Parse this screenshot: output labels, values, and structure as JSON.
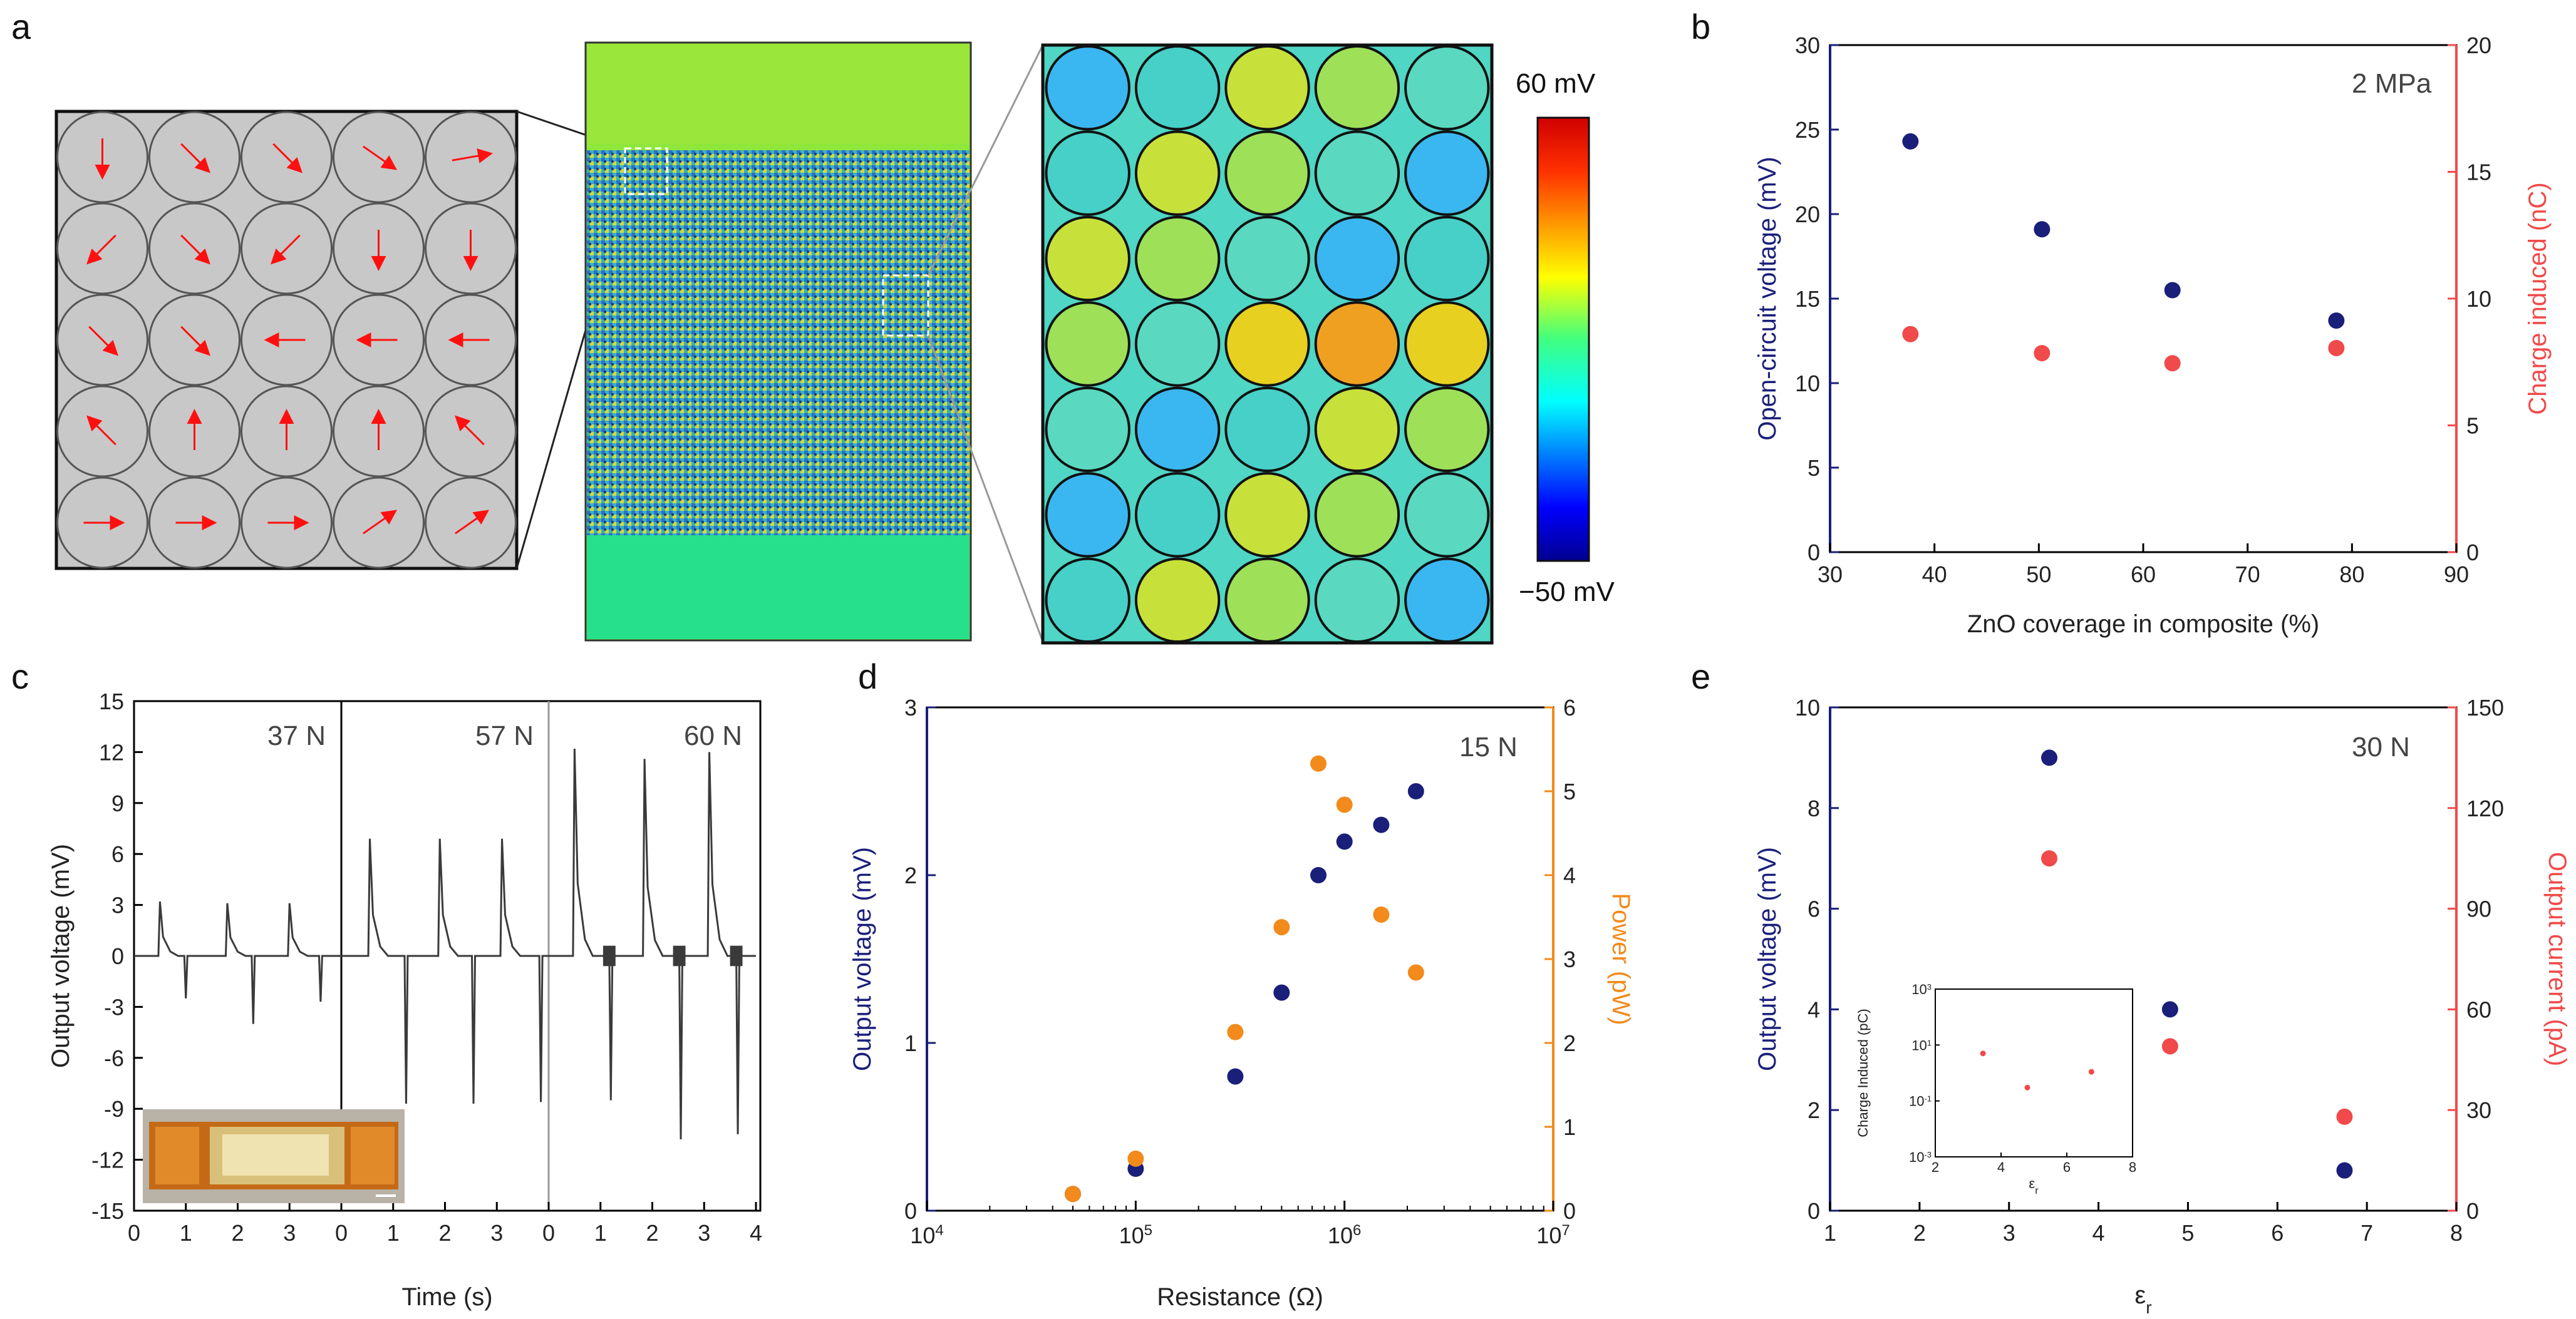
{
  "colors": {
    "navy": "#1a1f7a",
    "red": "#f04a4a",
    "orange": "#f28a1c",
    "grey_trace": "#3a3a3a",
    "arrow": "#ff1010"
  },
  "panel_a": {
    "letter": "a",
    "colorbar": {
      "max_label": "60 mV",
      "min_label": "−50 mV"
    },
    "arrow_directions_deg": [
      [
        90,
        45,
        45,
        35,
        -10
      ],
      [
        135,
        45,
        135,
        90,
        90
      ],
      [
        45,
        45,
        180,
        180,
        180
      ],
      [
        -135,
        -90,
        -90,
        -90,
        -135
      ],
      [
        0,
        0,
        0,
        -35,
        -35
      ]
    ]
  },
  "chart_data": [
    {
      "id": "b",
      "letter": "b",
      "type": "scatter",
      "annotation": "2 MPa",
      "xlabel": "ZnO coverage in composite (%)",
      "x_range": [
        30,
        90
      ],
      "x_ticks": [
        "30",
        "40",
        "50",
        "60",
        "70",
        "80",
        "90"
      ],
      "y_left": {
        "label": "Open-circuit voltage (mV)",
        "range": [
          0,
          30
        ],
        "ticks": [
          "0",
          "5",
          "10",
          "15",
          "20",
          "25",
          "30"
        ]
      },
      "y_right": {
        "label": "Charge induced (nC)",
        "range": [
          0,
          20
        ],
        "ticks": [
          "0",
          "5",
          "10",
          "15",
          "20"
        ]
      },
      "series": [
        {
          "name": "Open-circuit voltage",
          "axis": "left",
          "color": "#1a1f7a",
          "x": [
            37.7,
            50.3,
            62.8,
            78.5
          ],
          "y": [
            24.3,
            19.1,
            15.5,
            13.7
          ]
        },
        {
          "name": "Charge induced",
          "axis": "right",
          "color": "#f04a4a",
          "x": [
            37.7,
            50.3,
            62.8,
            78.5
          ],
          "y": [
            8.6,
            7.85,
            7.45,
            8.05
          ]
        }
      ]
    },
    {
      "id": "c",
      "letter": "c",
      "type": "line",
      "xlabel": "Time (s)",
      "ylabel": "Output voltage (mV)",
      "y_range": [
        -15,
        15
      ],
      "y_ticks": [
        "-15",
        "-12",
        "-9",
        "-6",
        "-3",
        "0",
        "3",
        "6",
        "9",
        "12",
        "15"
      ],
      "x_range_per_segment": [
        0,
        4
      ],
      "segments": [
        {
          "label": "37 N",
          "x_ticks": [
            "0",
            "1",
            "2",
            "3"
          ],
          "peak_times": [
            0.5,
            1.8,
            3.0
          ],
          "peaks": [
            3.2,
            3.1,
            3.1
          ],
          "neg_times": [
            1.0,
            2.3,
            3.6
          ],
          "negs": [
            -2.5,
            -4.0,
            -2.7
          ],
          "noise": false
        },
        {
          "label": "57 N",
          "x_ticks": [
            "0",
            "1",
            "2",
            "3"
          ],
          "peak_times": [
            0.55,
            1.9,
            3.1
          ],
          "peaks": [
            6.9,
            6.9,
            6.9
          ],
          "neg_times": [
            1.25,
            2.55,
            3.85
          ],
          "negs": [
            -8.7,
            -8.7,
            -8.6
          ],
          "noise": false
        },
        {
          "label": "60 N",
          "x_ticks": [
            "0",
            "1",
            "2",
            "3",
            "4"
          ],
          "peak_times": [
            0.5,
            1.85,
            3.1
          ],
          "peaks": [
            12.2,
            11.6,
            12.0
          ],
          "neg_times": [
            1.2,
            2.55,
            3.65
          ],
          "negs": [
            -8.5,
            -10.8,
            -10.5
          ],
          "noise": true
        }
      ]
    },
    {
      "id": "d",
      "letter": "d",
      "type": "scatter",
      "annotation": "15 N",
      "xlabel": "Resistance (Ω)",
      "x_scale": "log",
      "x_range_exp": [
        4,
        7
      ],
      "x_ticks": [
        "10",
        "10",
        "10",
        "10"
      ],
      "x_tick_exps": [
        "4",
        "5",
        "6",
        "7"
      ],
      "y_left": {
        "label": "Output voltage (mV)",
        "range": [
          0,
          3
        ],
        "ticks": [
          "0",
          "1",
          "2",
          "3"
        ]
      },
      "y_right": {
        "label": "Power (pW)",
        "range": [
          0,
          6
        ],
        "ticks": [
          "0",
          "1",
          "2",
          "3",
          "4",
          "5",
          "6"
        ]
      },
      "series": [
        {
          "name": "Output voltage",
          "axis": "left",
          "color": "#1a1f7a",
          "x": [
            50000,
            100000,
            300000,
            500000,
            750000,
            1000000,
            1500000,
            2200000
          ],
          "y": [
            0.1,
            0.25,
            0.8,
            1.3,
            2.0,
            2.2,
            2.3,
            2.5
          ]
        },
        {
          "name": "Power",
          "axis": "right",
          "color": "#f28a1c",
          "x": [
            50000,
            100000,
            300000,
            500000,
            750000,
            1000000,
            1500000,
            2200000
          ],
          "y": [
            0.2,
            0.62,
            2.13,
            3.38,
            5.33,
            4.84,
            3.53,
            2.84
          ]
        }
      ]
    },
    {
      "id": "e",
      "letter": "e",
      "type": "scatter",
      "annotation": "30 N",
      "xlabel": "εr",
      "x_range": [
        1,
        8
      ],
      "x_ticks": [
        "1",
        "2",
        "3",
        "4",
        "5",
        "6",
        "7",
        "8"
      ],
      "y_left": {
        "label": "Output voltage (mV)",
        "range": [
          0,
          10
        ],
        "ticks": [
          "0",
          "2",
          "4",
          "6",
          "8",
          "10"
        ]
      },
      "y_right": {
        "label": "Output current (pA)",
        "range": [
          0,
          150
        ],
        "ticks": [
          "0",
          "30",
          "60",
          "90",
          "120",
          "150"
        ]
      },
      "series": [
        {
          "name": "Output voltage",
          "axis": "left",
          "color": "#1a1f7a",
          "x": [
            3.45,
            4.8,
            6.75
          ],
          "y": [
            9.0,
            4.0,
            0.8
          ]
        },
        {
          "name": "Output current",
          "axis": "right",
          "color": "#f04a4a",
          "x": [
            3.45,
            4.8,
            6.75
          ],
          "y": [
            105,
            49,
            28
          ]
        }
      ],
      "inset": {
        "type": "scatter",
        "ylabel": "Charge Induced (pC)",
        "xlabel": "εr",
        "x_range": [
          2,
          8
        ],
        "x_ticks": [
          "2",
          "4",
          "6",
          "8"
        ],
        "y_scale": "log",
        "y_range_exp": [
          -3,
          3
        ],
        "y_ticks": [
          "10",
          "10",
          "10",
          "10"
        ],
        "y_tick_exps": [
          "-3",
          "-1",
          "1",
          "3"
        ],
        "series": [
          {
            "color": "#f04a4a",
            "x": [
              3.45,
              4.8,
              6.75
            ],
            "y": [
              5.0,
              0.3,
              1.1
            ]
          }
        ]
      }
    }
  ]
}
